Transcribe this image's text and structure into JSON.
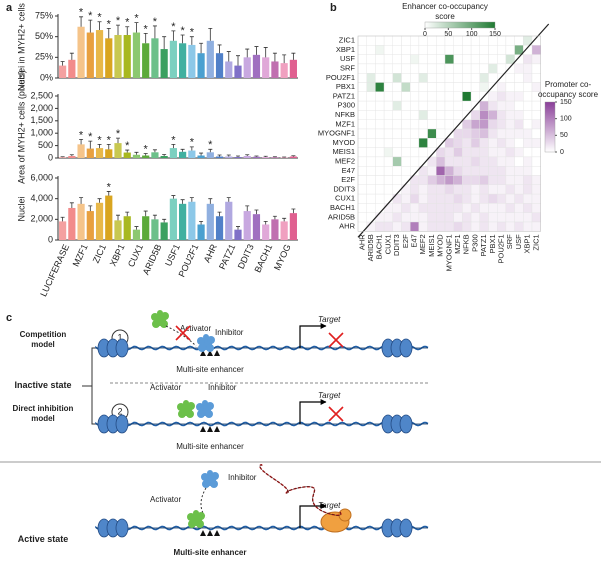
{
  "panel_labels": [
    "a",
    "b",
    "c"
  ],
  "chart_data": [
    {
      "type": "bar",
      "y_label": "Nuclei in MYH2+ cells",
      "values": [
        15,
        22,
        62,
        55,
        58,
        48,
        52,
        52,
        55,
        42,
        48,
        35,
        45,
        42,
        40,
        30,
        45,
        30,
        20,
        15,
        25,
        28,
        25,
        20,
        18,
        22
      ],
      "errors": [
        5,
        8,
        12,
        15,
        10,
        12,
        12,
        10,
        12,
        12,
        15,
        15,
        12,
        10,
        10,
        12,
        15,
        10,
        12,
        12,
        10,
        10,
        12,
        10,
        10,
        8
      ],
      "annotations": [
        null,
        null,
        "*",
        "*",
        "*",
        "*",
        "*",
        "*",
        "*",
        "*",
        "*",
        null,
        "*",
        "*",
        "*",
        null,
        null,
        null,
        null,
        null,
        null,
        null,
        null,
        null,
        null,
        null
      ],
      "colors": [
        "#f4a0a0",
        "#f28b8b",
        "#f5c48a",
        "#e8a040",
        "#e8b84a",
        "#d9a520",
        "#c8c850",
        "#a8b820",
        "#8cc870",
        "#5caa3a",
        "#6cc08a",
        "#3aa060",
        "#7cd0c0",
        "#40b0a0",
        "#8cc8e8",
        "#4aa0d0",
        "#90b0e0",
        "#5080c8",
        "#b0a8e0",
        "#8070c8",
        "#c8a8e0",
        "#a070c0",
        "#e0a8d8",
        "#c070b0",
        "#f0a0c0",
        "#e06090"
      ],
      "ylim": [
        0,
        75
      ],
      "yticks": [
        {
          "value": 0,
          "label": "0%"
        },
        {
          "value": 25,
          "label": "25%"
        },
        {
          "value": 50,
          "label": "50%"
        },
        {
          "value": 75,
          "label": "75%"
        }
      ]
    },
    {
      "type": "bar",
      "y_label": "Area of MYH2+ cells (pixels)",
      "values": [
        30,
        80,
        550,
        380,
        400,
        350,
        600,
        220,
        130,
        100,
        230,
        80,
        400,
        250,
        300,
        100,
        230,
        60,
        60,
        40,
        80,
        50,
        40,
        30,
        20,
        60
      ],
      "errors": [
        20,
        50,
        200,
        300,
        150,
        200,
        200,
        100,
        100,
        80,
        100,
        60,
        150,
        100,
        150,
        100,
        120,
        60,
        60,
        40,
        50,
        30,
        30,
        20,
        20,
        30
      ],
      "annotations": [
        null,
        null,
        "*",
        "*",
        "*",
        "*",
        "*",
        "*",
        null,
        "*",
        null,
        null,
        "*",
        null,
        "*",
        null,
        "*",
        null,
        null,
        null,
        null,
        null,
        null,
        null,
        null,
        null
      ],
      "colors": [
        "#f4a0a0",
        "#f28b8b",
        "#f5c48a",
        "#e8a040",
        "#e8b84a",
        "#d9a520",
        "#c8c850",
        "#a8b820",
        "#8cc870",
        "#5caa3a",
        "#6cc08a",
        "#3aa060",
        "#7cd0c0",
        "#40b0a0",
        "#8cc8e8",
        "#4aa0d0",
        "#90b0e0",
        "#5080c8",
        "#b0a8e0",
        "#8070c8",
        "#c8a8e0",
        "#a070c0",
        "#e0a8d8",
        "#c070b0",
        "#f0a0c0",
        "#e06090"
      ],
      "ylim": [
        0,
        2500
      ],
      "yticks": [
        0,
        500,
        {
          "value": 1000,
          "label": "1,000"
        },
        {
          "value": 1500,
          "label": "1,500"
        },
        {
          "value": 2000,
          "label": "2,000"
        },
        {
          "value": 2500,
          "label": "2,500"
        }
      ]
    },
    {
      "type": "bar",
      "y_label": "Nuclei",
      "categories": [
        "LUCIFERASE",
        null,
        "MZF1",
        null,
        "ZIC1",
        null,
        "XBP1",
        null,
        "CUX1",
        null,
        "ARID5B",
        null,
        "USF1",
        null,
        "POU2F1",
        null,
        "AHR",
        null,
        "PATZ1",
        null,
        "DDIT3",
        null,
        "BACH1",
        null,
        "MYOG",
        null
      ],
      "values": [
        1800,
        3100,
        3500,
        2800,
        3600,
        4300,
        1900,
        2300,
        1000,
        2300,
        2000,
        1700,
        4000,
        3500,
        3700,
        1500,
        3500,
        2300,
        3700,
        1000,
        2800,
        2500,
        1500,
        2000,
        1800,
        2600
      ],
      "errors": [
        400,
        500,
        600,
        500,
        400,
        400,
        500,
        400,
        300,
        500,
        400,
        300,
        300,
        400,
        400,
        300,
        500,
        400,
        400,
        300,
        500,
        400,
        300,
        300,
        300,
        400
      ],
      "annotations": [
        null,
        null,
        null,
        null,
        null,
        "*",
        null,
        null,
        null,
        null,
        null,
        null,
        null,
        null,
        null,
        null,
        null,
        null,
        null,
        null,
        null,
        null,
        null,
        null,
        null,
        null
      ],
      "colors": [
        "#f4a0a0",
        "#f28b8b",
        "#f5c48a",
        "#e8a040",
        "#e8b84a",
        "#d9a520",
        "#c8c850",
        "#a8b820",
        "#8cc870",
        "#5caa3a",
        "#6cc08a",
        "#3aa060",
        "#7cd0c0",
        "#40b0a0",
        "#8cc8e8",
        "#4aa0d0",
        "#90b0e0",
        "#5080c8",
        "#b0a8e0",
        "#8070c8",
        "#c8a8e0",
        "#a070c0",
        "#e0a8d8",
        "#c070b0",
        "#f0a0c0",
        "#e06090"
      ],
      "ylim": [
        0,
        6000
      ],
      "yticks": [
        0,
        {
          "value": 2000,
          "label": "2,000"
        },
        {
          "value": 4000,
          "label": "4,000"
        },
        {
          "value": 6000,
          "label": "6,000"
        }
      ]
    },
    {
      "type": "heatmap",
      "rows": [
        "ZIC1",
        "XBP1",
        "USF",
        "SRF",
        "POU2F1",
        "PBX1",
        "PATZ1",
        "P300",
        "NFKB",
        "MZF1",
        "MYOGNF1",
        "MYOD",
        "MEIS1",
        "MEF2",
        "E47",
        "E2F",
        "DDIT3",
        "CUX1",
        "BACH1",
        "ARID5B",
        "AHR"
      ],
      "columns": [
        "AHR",
        "ARID5B",
        "BACH1",
        "CUX1",
        "DDIT3",
        "E2F",
        "E47",
        "MEF2",
        "MEIS1",
        "MYOD",
        "MYOGNF1",
        "MZF1",
        "NFKB",
        "P300",
        "PATZ1",
        "PBX1",
        "POU2F1",
        "SRF",
        "USF",
        "XBP1",
        "ZIC1"
      ],
      "values": [
        [
          0,
          0,
          0,
          0,
          0,
          0,
          0,
          0,
          0,
          0,
          0,
          0,
          0,
          0,
          0,
          0,
          0,
          0,
          0,
          20,
          null
        ],
        [
          0,
          0,
          10,
          0,
          0,
          0,
          0,
          0,
          0,
          0,
          0,
          0,
          0,
          0,
          0,
          0,
          0,
          0,
          90,
          null,
          60
        ],
        [
          0,
          0,
          0,
          0,
          0,
          0,
          10,
          0,
          0,
          0,
          120,
          0,
          0,
          0,
          0,
          0,
          0,
          30,
          null,
          20,
          10
        ],
        [
          0,
          0,
          0,
          0,
          0,
          0,
          0,
          0,
          0,
          0,
          0,
          0,
          0,
          0,
          0,
          20,
          0,
          null,
          10,
          10,
          0
        ],
        [
          0,
          20,
          0,
          0,
          30,
          0,
          0,
          20,
          0,
          0,
          0,
          0,
          0,
          0,
          20,
          0,
          null,
          0,
          0,
          10,
          0
        ],
        [
          0,
          20,
          140,
          0,
          0,
          40,
          0,
          0,
          0,
          0,
          0,
          0,
          0,
          0,
          10,
          null,
          10,
          0,
          0,
          0,
          10
        ],
        [
          0,
          0,
          0,
          0,
          0,
          0,
          0,
          0,
          0,
          0,
          0,
          0,
          150,
          0,
          null,
          10,
          20,
          10,
          10,
          0,
          0
        ],
        [
          0,
          0,
          0,
          0,
          20,
          0,
          0,
          0,
          0,
          0,
          0,
          0,
          0,
          null,
          60,
          20,
          10,
          10,
          0,
          0,
          0
        ],
        [
          0,
          0,
          0,
          0,
          0,
          0,
          0,
          20,
          0,
          0,
          0,
          0,
          null,
          30,
          90,
          60,
          20,
          10,
          10,
          0,
          0
        ],
        [
          0,
          0,
          0,
          0,
          0,
          0,
          0,
          0,
          0,
          0,
          0,
          null,
          40,
          70,
          80,
          30,
          20,
          10,
          20,
          0,
          10
        ],
        [
          0,
          0,
          0,
          0,
          0,
          0,
          0,
          0,
          130,
          0,
          null,
          30,
          30,
          40,
          50,
          20,
          10,
          10,
          10,
          10,
          0
        ],
        [
          0,
          0,
          0,
          0,
          0,
          0,
          0,
          140,
          0,
          null,
          40,
          30,
          20,
          40,
          20,
          10,
          20,
          10,
          0,
          10,
          10
        ],
        [
          0,
          0,
          0,
          10,
          0,
          0,
          0,
          0,
          null,
          30,
          20,
          40,
          20,
          20,
          20,
          10,
          10,
          20,
          10,
          0,
          0
        ],
        [
          0,
          0,
          0,
          0,
          60,
          0,
          0,
          null,
          20,
          50,
          20,
          20,
          20,
          30,
          20,
          20,
          10,
          10,
          0,
          10,
          0
        ],
        [
          0,
          0,
          0,
          0,
          0,
          0,
          null,
          20,
          10,
          120,
          60,
          30,
          20,
          20,
          20,
          20,
          20,
          10,
          10,
          10,
          0
        ],
        [
          0,
          0,
          0,
          0,
          0,
          null,
          20,
          20,
          40,
          60,
          80,
          60,
          30,
          30,
          40,
          20,
          20,
          10,
          10,
          20,
          10
        ],
        [
          0,
          0,
          0,
          0,
          null,
          10,
          20,
          10,
          20,
          20,
          30,
          20,
          20,
          10,
          20,
          10,
          10,
          20,
          10,
          20,
          10
        ],
        [
          0,
          0,
          0,
          null,
          20,
          10,
          30,
          10,
          20,
          20,
          20,
          30,
          20,
          10,
          20,
          30,
          20,
          10,
          20,
          10,
          10
        ],
        [
          0,
          0,
          null,
          10,
          10,
          20,
          10,
          20,
          20,
          20,
          20,
          20,
          10,
          20,
          10,
          10,
          10,
          20,
          10,
          20,
          10
        ],
        [
          0,
          null,
          10,
          10,
          20,
          10,
          10,
          10,
          20,
          20,
          20,
          10,
          20,
          10,
          20,
          10,
          10,
          10,
          10,
          10,
          20
        ],
        [
          null,
          10,
          20,
          20,
          10,
          20,
          100,
          10,
          20,
          20,
          20,
          30,
          20,
          10,
          20,
          10,
          20,
          10,
          20,
          10,
          10
        ]
      ],
      "clim": [
        0,
        150
      ],
      "colorbars": [
        {
          "title": "Enhancer co-occupancy score",
          "color": "#1f7a32",
          "ticks": [
            0,
            50,
            100,
            150
          ]
        },
        {
          "title": "Promoter co-occupancy score",
          "color": "#8a3f99",
          "ticks": [
            0,
            50,
            100,
            150
          ]
        }
      ]
    }
  ],
  "diagram": {
    "competition": {
      "title": "Competition model",
      "number": "1",
      "activator": "Activator",
      "inhibitor": "Inhibitor",
      "target": "Target",
      "enhancer": "Multi-site enhancer"
    },
    "inactive_state": "Inactive state",
    "direct": {
      "title": "Direct inhibition model",
      "number": "2",
      "activator": "Activator",
      "inhibitor": "Inhibitor",
      "target": "Target",
      "enhancer": "Multi-site enhancer"
    },
    "active": {
      "title": "Active state",
      "activator": "Activator",
      "inhibitor": "Inhibitor",
      "target": "Target",
      "enhancer": "Multi-site enhancer"
    }
  }
}
